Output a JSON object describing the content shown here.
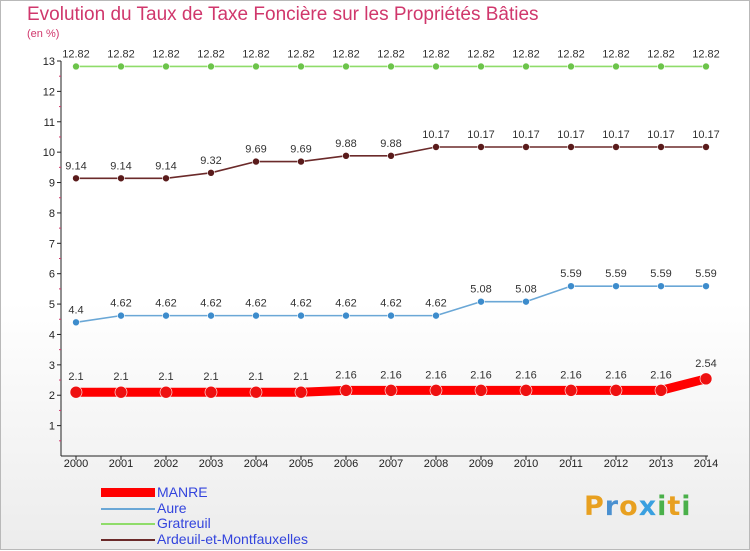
{
  "chart_data": {
    "type": "line",
    "title": "Evolution du Taux de Taxe Foncière sur les Propriétés Bâties",
    "unit_label": "(en %)",
    "x": [
      "2000",
      "2001",
      "2002",
      "2003",
      "2004",
      "2005",
      "2006",
      "2007",
      "2008",
      "2009",
      "2010",
      "2011",
      "2012",
      "2013",
      "2014"
    ],
    "ylim": [
      0,
      13
    ],
    "yticks": [
      1,
      2,
      3,
      4,
      5,
      6,
      7,
      8,
      9,
      10,
      11,
      12,
      13
    ],
    "grid": false,
    "legend_position": "bottom-left",
    "series": [
      {
        "name": "MANRE",
        "color": "#ff0000",
        "marker": "#ee1111",
        "width": 9,
        "radius": 6,
        "values": [
          2.1,
          2.1,
          2.1,
          2.1,
          2.1,
          2.1,
          2.16,
          2.16,
          2.16,
          2.16,
          2.16,
          2.16,
          2.16,
          2.16,
          2.54
        ],
        "labels": [
          "2.1",
          "2.1",
          "2.1",
          "2.1",
          "2.1",
          "2.1",
          "2.16",
          "2.16",
          "2.16",
          "2.16",
          "2.16",
          "2.16",
          "2.16",
          "2.16",
          "2.54"
        ]
      },
      {
        "name": "Aure",
        "color": "#6aa7d6",
        "marker": "#3d8ccc",
        "width": 1.6,
        "radius": 3.5,
        "values": [
          4.4,
          4.62,
          4.62,
          4.62,
          4.62,
          4.62,
          4.62,
          4.62,
          4.62,
          5.08,
          5.08,
          5.59,
          5.59,
          5.59,
          5.59
        ],
        "labels": [
          "4.4",
          "4.62",
          "4.62",
          "4.62",
          "4.62",
          "4.62",
          "4.62",
          "4.62",
          "4.62",
          "5.08",
          "5.08",
          "5.59",
          "5.59",
          "5.59",
          "5.59"
        ]
      },
      {
        "name": "Gratreuil",
        "color": "#8fdc6a",
        "marker": "#6cc44a",
        "width": 1.6,
        "radius": 3.5,
        "values": [
          12.82,
          12.82,
          12.82,
          12.82,
          12.82,
          12.82,
          12.82,
          12.82,
          12.82,
          12.82,
          12.82,
          12.82,
          12.82,
          12.82,
          12.82
        ],
        "labels": [
          "12.82",
          "12.82",
          "12.82",
          "12.82",
          "12.82",
          "12.82",
          "12.82",
          "12.82",
          "12.82",
          "12.82",
          "12.82",
          "12.82",
          "12.82",
          "12.82",
          "12.82"
        ]
      },
      {
        "name": "Ardeuil-et-Montfauxelles",
        "color": "#6b2a2a",
        "marker": "#5a1b1b",
        "width": 1.6,
        "radius": 3.5,
        "values": [
          9.14,
          9.14,
          9.14,
          9.32,
          9.69,
          9.69,
          9.88,
          9.88,
          10.17,
          10.17,
          10.17,
          10.17,
          10.17,
          10.17,
          10.17
        ],
        "labels": [
          "9.14",
          "9.14",
          "9.14",
          "9.32",
          "9.69",
          "9.69",
          "9.88",
          "9.88",
          "10.17",
          "10.17",
          "10.17",
          "10.17",
          "10.17",
          "10.17",
          "10.17"
        ]
      }
    ]
  },
  "logo": {
    "text": "Proxiti",
    "letters": [
      "P",
      "r",
      "o",
      "x",
      "i",
      "t",
      "i"
    ],
    "colors": [
      "#e8a020",
      "#4a90d0",
      "#e8a020",
      "#3aa0e0",
      "#4ab04a",
      "#e8a020",
      "#4ab04a"
    ]
  }
}
